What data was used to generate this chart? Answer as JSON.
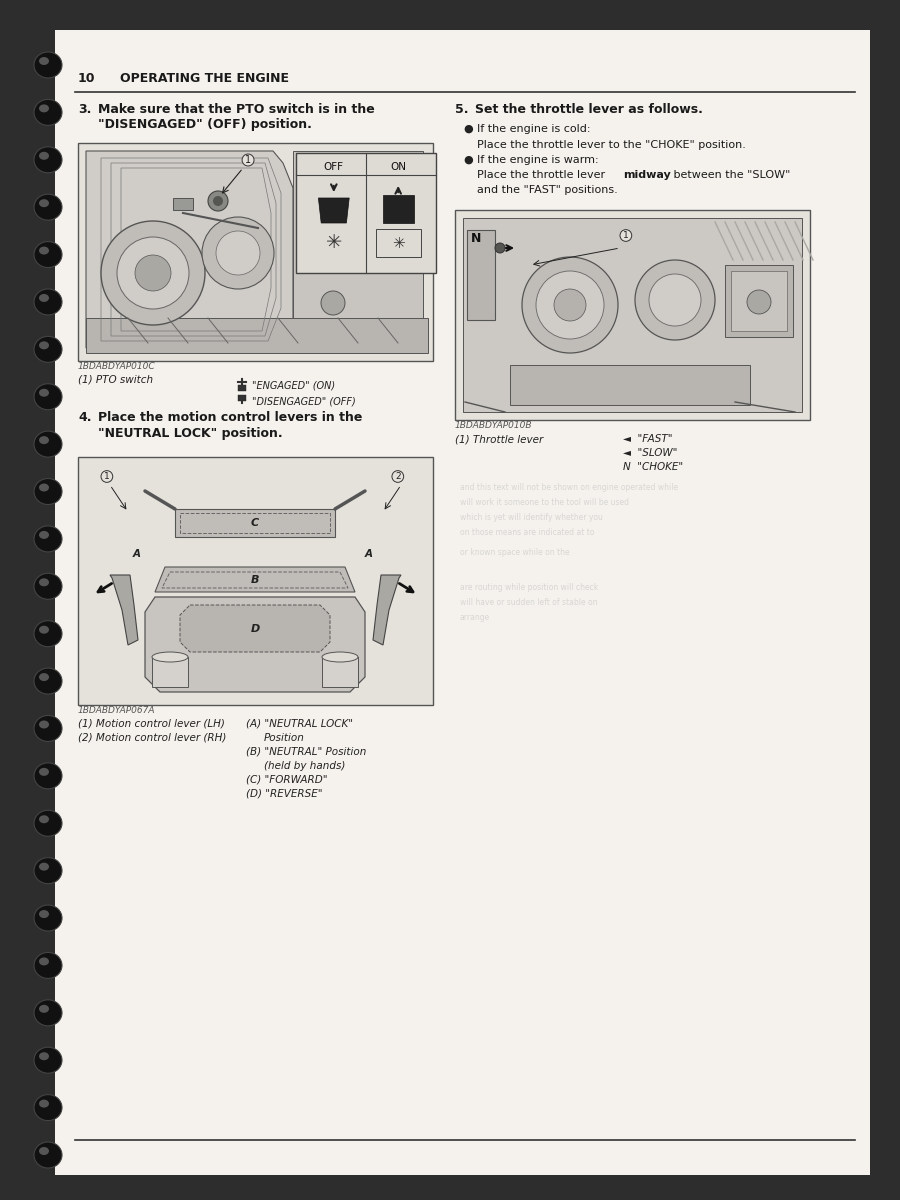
{
  "page_number": "10",
  "page_title": "OPERATING THE ENGINE",
  "page_bg": "#2d2d2d",
  "paper_color": "#f5f2ed",
  "paper_shadow": "#e8e5e0",
  "step3_title_bold": "Make sure that the PTO switch is in the",
  "step3_title_bold2": "\"DISENGAGED\" (OFF) position.",
  "step4_title_bold": "Place the motion control levers in the",
  "step4_title_bold2": "\"NEUTRAL LOCK\" position.",
  "step5_title_bold": "Set the throttle lever as follows.",
  "fig1_label": "1BDABDYAP010C",
  "fig1_caption1": "(1) PTO switch",
  "fig2_label": "1BDABDYAP067A",
  "fig2_caption1": "(1) Motion control lever (LH)",
  "fig2_caption2": "(2) Motion control lever (RH)",
  "fig3_label": "1BDABDYAP010B",
  "fig3_caption1": "(1) Throttle lever",
  "diagram_line": "#333333",
  "diagram_fill_dark": "#888888",
  "diagram_fill_mid": "#aaaaaa",
  "diagram_fill_light": "#cccccc",
  "diagram_bg": "#e5e2dc",
  "text_color": "#1a1a1a",
  "caption_color": "#222222"
}
